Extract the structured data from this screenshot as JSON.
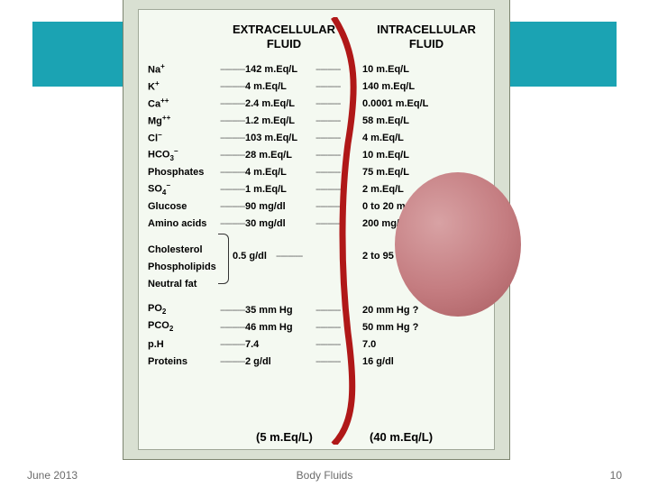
{
  "colors": {
    "teal": "#1ba3b3",
    "panel_bg": "#d9e0d2",
    "inner_bg": "#f4f9f1",
    "membrane": "#b01818",
    "cell": "#c47c80"
  },
  "headers": {
    "ecf_line1": "EXTRACELLULAR",
    "ecf_line2": "FLUID",
    "icf_line1": "INTRACELLULAR",
    "icf_line2": "FLUID"
  },
  "rows": [
    {
      "label_html": "Na<sup>+</sup>",
      "ecf": "142 m.Eq/L",
      "icf": "10 m.Eq/L"
    },
    {
      "label_html": "K<sup>+</sup>",
      "ecf": "4 m.Eq/L",
      "icf": "140 m.Eq/L"
    },
    {
      "label_html": "Ca<sup>++</sup>",
      "ecf": "2.4 m.Eq/L",
      "icf": "0.0001 m.Eq/L"
    },
    {
      "label_html": "Mg<sup>++</sup>",
      "ecf": "1.2 m.Eq/L",
      "icf": "58 m.Eq/L"
    },
    {
      "label_html": "Cl<sup>−</sup>",
      "ecf": "103 m.Eq/L",
      "icf": "4 m.Eq/L"
    },
    {
      "label_html": "HCO<sub>3</sub><sup>−</sup>",
      "ecf": "28 m.Eq/L",
      "icf": "10 m.Eq/L"
    },
    {
      "label_html": "Phosphates",
      "ecf": "4 m.Eq/L",
      "icf": "75 m.Eq/L"
    },
    {
      "label_html": "SO<sub>4</sub><sup>−</sup>",
      "ecf": "1 m.Eq/L",
      "icf": "2 m.Eq/L"
    },
    {
      "label_html": "Glucose",
      "ecf": "90 mg/dl",
      "icf": "0 to 20 mg/dl"
    },
    {
      "label_html": "Amino acids",
      "ecf": "30 mg/dl",
      "icf": "200 mg/dl ?"
    }
  ],
  "lipids": {
    "labels": [
      "Cholesterol",
      "Phospholipids",
      "Neutral fat"
    ],
    "ecf": "0.5 g/dl",
    "icf": "2 to 95 g/dl"
  },
  "gases_rows": [
    {
      "label_html": "PO<sub>2</sub>",
      "ecf": "35 mm Hg",
      "icf": "20 mm Hg ?"
    },
    {
      "label_html": "PCO<sub>2</sub>",
      "ecf": "46 mm Hg",
      "icf": "50 mm Hg ?"
    },
    {
      "label_html": "p.H",
      "ecf": "7.4",
      "icf": "7.0"
    },
    {
      "label_html": "Proteins",
      "ecf": "2 g/dl",
      "icf": "16 g/dl"
    }
  ],
  "bottom": {
    "ecf": "(5 m.Eq/L)",
    "icf": "(40 m.Eq/L)"
  },
  "footer": {
    "date": "June 2013",
    "title": "Body Fluids",
    "page": "10"
  },
  "dash_pattern": "-----------"
}
